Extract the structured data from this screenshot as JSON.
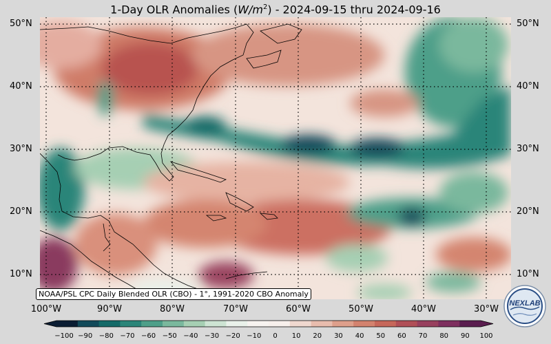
{
  "title": {
    "prefix": "1-Day OLR Anomalies (",
    "unit_base": "W/m",
    "unit_exp": "2",
    "suffix": ") - 2024-09-15 thru 2024-09-16"
  },
  "map": {
    "lat_labels": [
      "50°N",
      "40°N",
      "30°N",
      "20°N",
      "10°N"
    ],
    "lon_labels": [
      "100°W",
      "90°W",
      "80°W",
      "70°W",
      "60°W",
      "50°W",
      "40°W",
      "30°W"
    ],
    "source_note": "NOAA/PSL CPC Daily Blended OLR (CBO) - 1°, 1991-2020 CBO Anomaly",
    "gridlines": "dotted"
  },
  "colorbar": {
    "ticks": [
      "−100",
      "−90",
      "−80",
      "−70",
      "−60",
      "−50",
      "−40",
      "−30",
      "−20",
      "−10",
      "0",
      "10",
      "20",
      "30",
      "40",
      "50",
      "60",
      "70",
      "80",
      "90",
      "100"
    ],
    "colors_negative": [
      "#0b1d33",
      "#124a5a",
      "#146a68",
      "#2b8579",
      "#4e9f89",
      "#7ab89d",
      "#a6cfb3",
      "#cde4d3",
      "#e9f1ea",
      "#f7f3f0"
    ],
    "colors_positive": [
      "#f7f0ec",
      "#f0d8cf",
      "#e8bcad",
      "#de9f8b",
      "#d3826e",
      "#c6675a",
      "#b04f57",
      "#98405e",
      "#7e2f5f",
      "#5a1d4f"
    ]
  },
  "logo": {
    "text": "NEXLAB"
  }
}
